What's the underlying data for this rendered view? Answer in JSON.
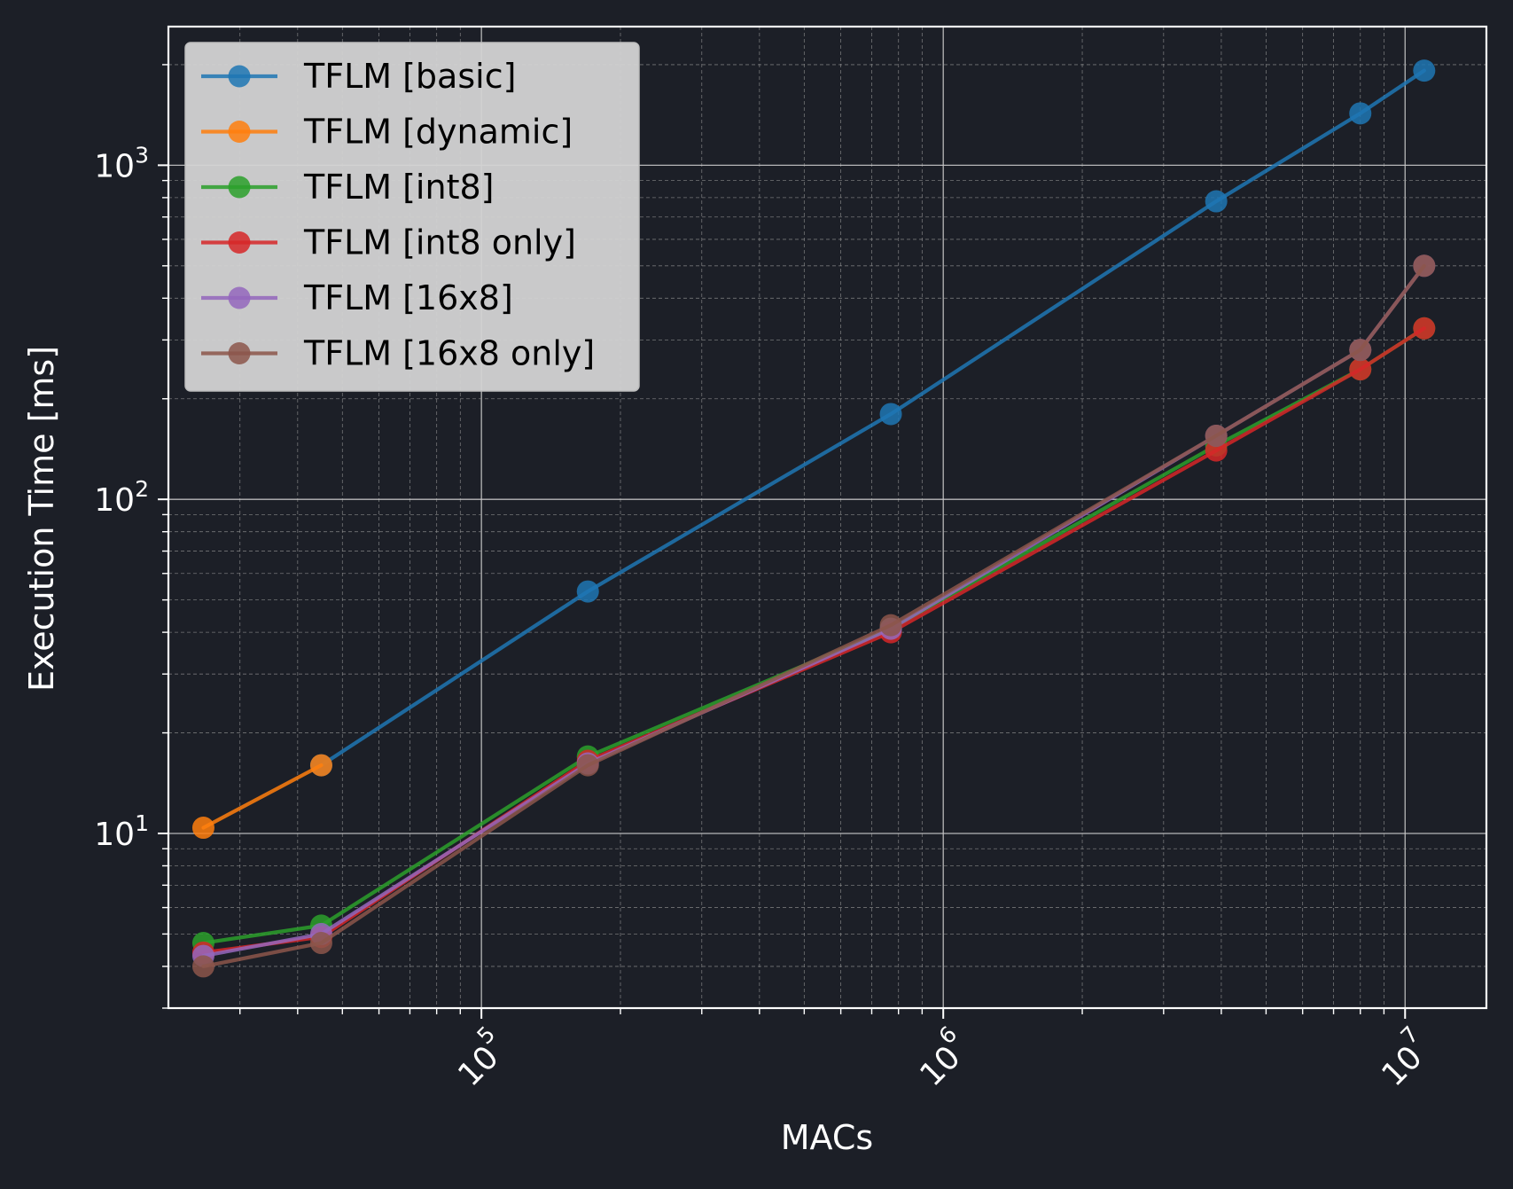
{
  "colors": {
    "background": "#1c1f27",
    "axes": "#ffffff",
    "grid_major": "#c8c8c8",
    "grid_minor": "#9a9a9a",
    "legend_bg": "#d3d3d3"
  },
  "chart_data": {
    "type": "line",
    "title": "",
    "xlabel": "MACs",
    "ylabel": "Execution Time [ms]",
    "xscale": "log",
    "yscale": "log",
    "xlim": [
      21000,
      15000000
    ],
    "ylim": [
      3.0,
      2600
    ],
    "xticks": [
      {
        "value": 100000,
        "base": "10",
        "exp": "5"
      },
      {
        "value": 1000000,
        "base": "10",
        "exp": "6"
      },
      {
        "value": 10000000,
        "base": "10",
        "exp": "7"
      }
    ],
    "yticks": [
      {
        "value": 10,
        "base": "10",
        "exp": "1"
      },
      {
        "value": 100,
        "base": "10",
        "exp": "2"
      },
      {
        "value": 1000,
        "base": "10",
        "exp": "3"
      }
    ],
    "grid": true,
    "legend_position": "upper-left",
    "series": [
      {
        "name": "TFLM [basic]",
        "color": "#1f77b4",
        "x": [
          45000,
          170000,
          770000,
          3900000,
          8000000,
          11000000
        ],
        "y": [
          16,
          53,
          180,
          780,
          1430,
          1920
        ]
      },
      {
        "name": "TFLM [dynamic]",
        "color": "#ff7f0e",
        "x": [
          25000,
          45000
        ],
        "y": [
          10.4,
          16
        ]
      },
      {
        "name": "TFLM [int8]",
        "color": "#2ca02c",
        "x": [
          25000,
          45000,
          170000,
          770000,
          3900000,
          8000000,
          11000000
        ],
        "y": [
          4.7,
          5.3,
          17,
          41,
          145,
          245,
          325
        ]
      },
      {
        "name": "TFLM [int8 only]",
        "color": "#d62728",
        "x": [
          25000,
          45000,
          170000,
          770000,
          3900000,
          8000000,
          11000000
        ],
        "y": [
          4.4,
          4.9,
          16.5,
          40,
          140,
          245,
          325
        ]
      },
      {
        "name": "TFLM [16x8]",
        "color": "#9467bd",
        "x": [
          25000,
          45000,
          170000,
          770000,
          3900000,
          8000000,
          11000000
        ],
        "y": [
          4.3,
          5.0,
          16.2,
          41,
          155,
          280,
          500
        ]
      },
      {
        "name": "TFLM [16x8 only]",
        "color": "#8c564b",
        "x": [
          25000,
          45000,
          170000,
          770000,
          3900000,
          8000000,
          11000000
        ],
        "y": [
          4.0,
          4.7,
          16,
          42,
          155,
          280,
          500
        ]
      }
    ]
  }
}
